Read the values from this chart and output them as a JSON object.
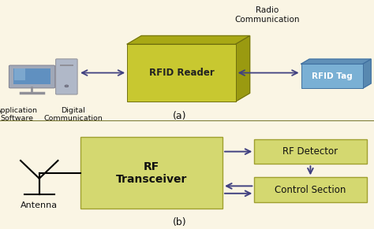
{
  "bg_color": "#faf5e4",
  "box_yellow_dark": "#b8b820",
  "box_yellow_main": "#c8c830",
  "box_yellow_top": "#a8a815",
  "box_yellow_right": "#9a9a10",
  "box_blue_main": "#7ab0d4",
  "box_blue_top": "#6090b8",
  "box_blue_right": "#5888b0",
  "box_light_yellow": "#d4d870",
  "box_light_yellow_edge": "#a0a030",
  "arrow_color": "#404080",
  "text_color": "#111111",
  "label_a": "(a)",
  "label_b": "(b)",
  "rfid_reader_label": "RFID Reader",
  "rfid_tag_label": "RFID Tag",
  "radio_comm_label": "Radio\nCommunication",
  "app_sw_label": "Application\nSoftware",
  "dig_comm_label": "Digital\nCommunication",
  "antenna_label": "Antenna",
  "rf_transceiver_label": "RF\nTransceiver",
  "rf_detector_label": "RF Detector",
  "control_section_label": "Control Section",
  "divider_color": "#606010",
  "line_color": "#000000",
  "comp_monitor_face": "#aaccee",
  "comp_monitor_frame": "#a0a8b8",
  "comp_monitor_screen": "#6090c0",
  "comp_tower_face": "#b0b8c8",
  "comp_tower_edge": "#909098"
}
